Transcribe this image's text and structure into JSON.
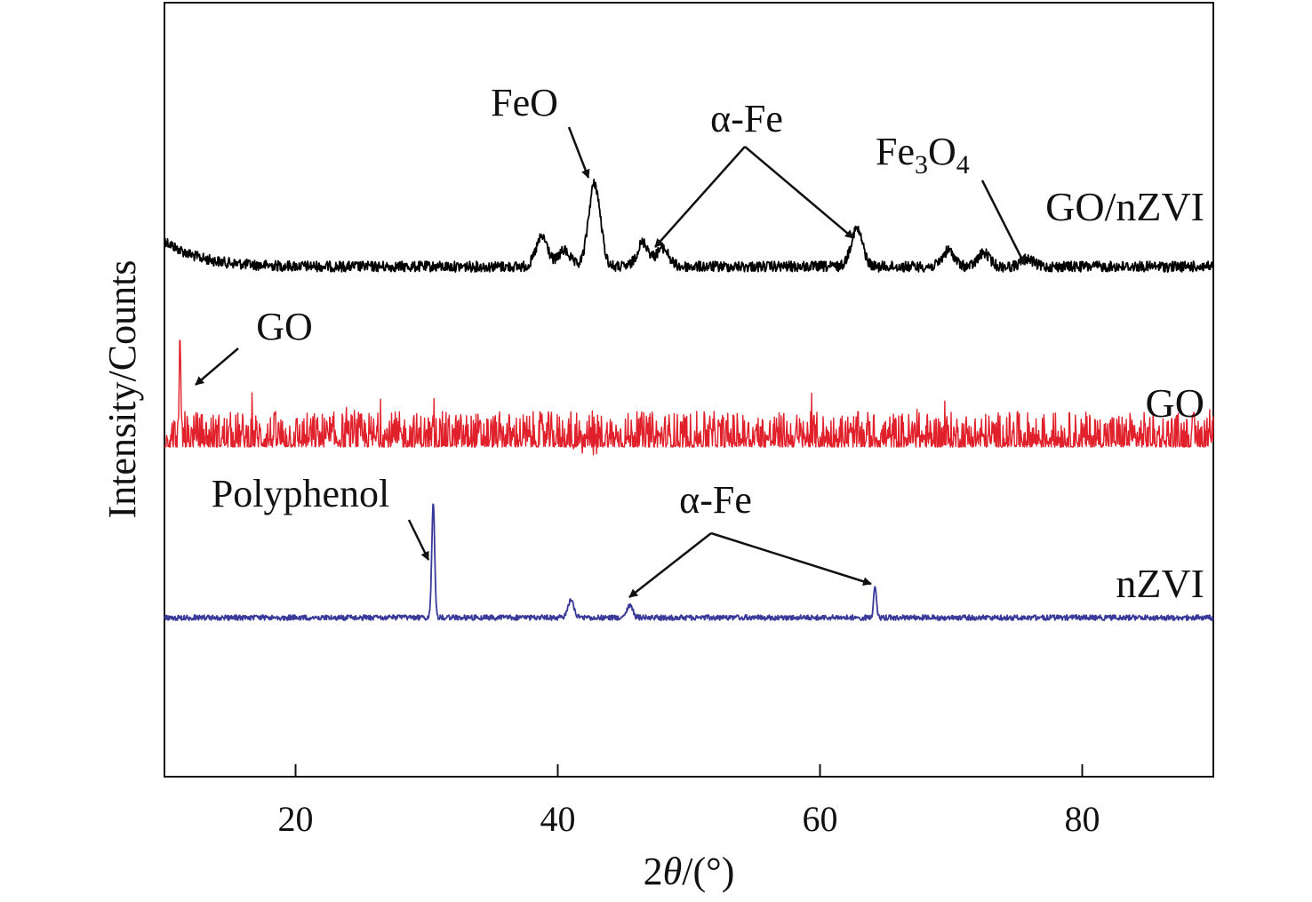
{
  "chart_data": {
    "type": "line",
    "xlabel_prefix": "2",
    "xlabel_theta": "θ",
    "xlabel_suffix": "/(°)",
    "ylabel": "Intensity/Counts",
    "xlim": [
      10,
      90
    ],
    "xticks": [
      20,
      40,
      60,
      80
    ],
    "yticks_shown": false,
    "grid": false,
    "series": [
      {
        "name": "GO/nZVI",
        "color": "#000000",
        "peaks": [
          [
            38.8,
            0.22
          ],
          [
            40.5,
            0.12
          ],
          [
            42.8,
            0.62
          ],
          [
            46.5,
            0.18
          ],
          [
            48.0,
            0.14
          ],
          [
            62.8,
            0.28
          ],
          [
            69.8,
            0.12
          ],
          [
            72.5,
            0.1
          ],
          [
            75.8,
            0.06
          ]
        ]
      },
      {
        "name": "GO",
        "color": "#e0202a",
        "peaks": [
          [
            11.2,
            0.72
          ]
        ]
      },
      {
        "name": "nZVI",
        "color": "#3a3a9a",
        "peaks": [
          [
            30.5,
            0.78
          ],
          [
            41.0,
            0.12
          ],
          [
            45.5,
            0.08
          ],
          [
            64.2,
            0.22
          ]
        ]
      }
    ],
    "annotations": {
      "feo": "FeO",
      "alpha_fe_top": "α-Fe",
      "fe3o4_base": "Fe",
      "fe3o4_sub3": "3",
      "fe3o4_mid": "O",
      "fe3o4_sub4": "4",
      "go": "GO",
      "polyphenol": "Polyphenol",
      "alpha_fe_bottom": "α-Fe"
    }
  }
}
